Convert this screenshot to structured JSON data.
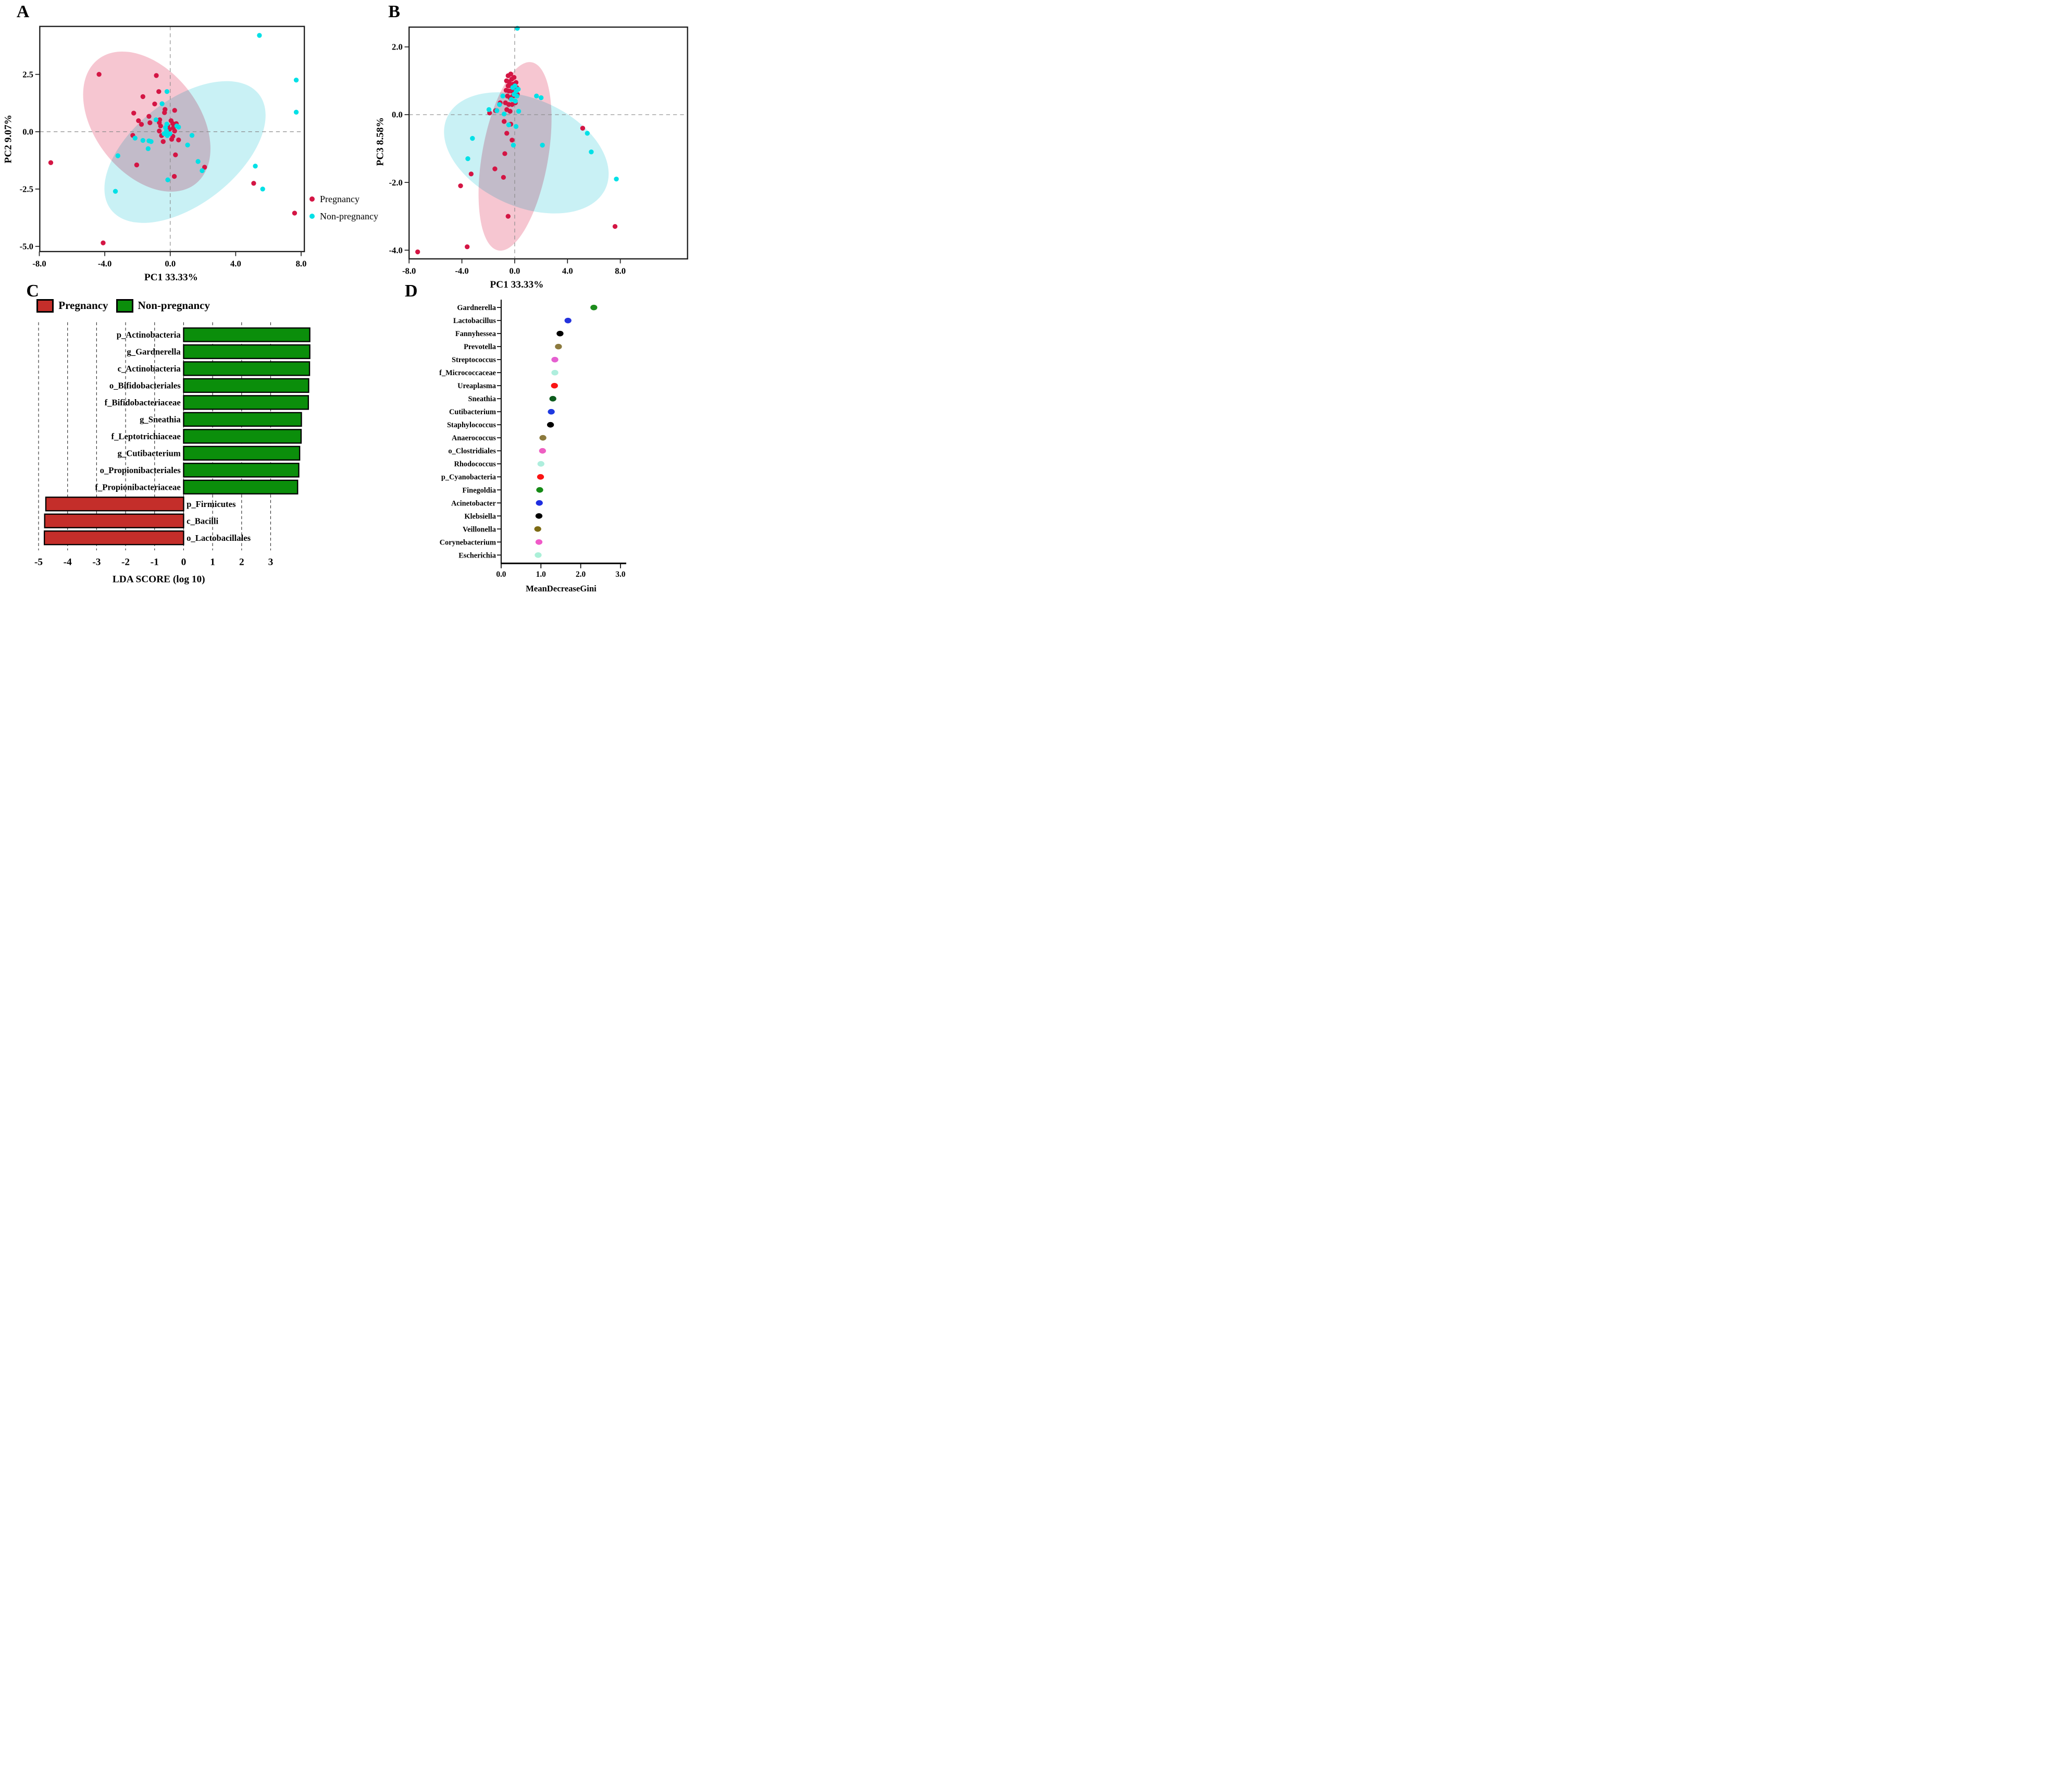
{
  "panel_letters": {
    "a": "A",
    "b": "B",
    "c": "C",
    "d": "D"
  },
  "legend_ab": {
    "items": [
      {
        "label": "Pregnancy",
        "color": "#d41544"
      },
      {
        "label": "Non-pregnancy",
        "color": "#00e0e6"
      }
    ]
  },
  "legend_c": {
    "items": [
      {
        "label": "Pregnancy",
        "color": "#c42e2a"
      },
      {
        "label": "Non-pregnancy",
        "color": "#0b8e0b"
      }
    ]
  },
  "chart_data": [
    {
      "id": "A",
      "type": "scatter",
      "xlabel": "PC1 33.33%",
      "ylabel": "PC2 9.07%",
      "xlim": [
        -8.0,
        8.2
      ],
      "ylim": [
        -5.2,
        4.6
      ],
      "grid": false,
      "xticks": {
        "labels": [
          "-8.0",
          "-4.0",
          "0.0",
          "4.0",
          "8.0"
        ],
        "values": [
          -8,
          -4,
          0,
          4,
          8
        ]
      },
      "yticks": {
        "labels": [
          "2.5",
          "0.0",
          "-2.5",
          "-5.0"
        ],
        "values": [
          2.5,
          0,
          -2.5,
          -5
        ]
      },
      "ellipses": [
        {
          "series": "Pregnancy",
          "fill": "#f6c6d1",
          "cx": 845,
          "cy": 700,
          "rx": 455,
          "ry": 300,
          "rot": 52
        },
        {
          "series": "Non-pregnancy",
          "fill": "#c9f1f5",
          "cx": 1065,
          "cy": 875,
          "rx": 540,
          "ry": 300,
          "rot": -38
        }
      ],
      "series": [
        {
          "name": "Pregnancy",
          "color": "#d41544",
          "points": [
            [
              -4.35,
              2.5
            ],
            [
              -0.85,
              2.45
            ],
            [
              -0.7,
              1.75
            ],
            [
              -1.67,
              1.53
            ],
            [
              -0.95,
              1.21
            ],
            [
              0.27,
              0.93
            ],
            [
              -0.32,
              0.97
            ],
            [
              -0.35,
              0.83
            ],
            [
              -2.23,
              0.81
            ],
            [
              -1.3,
              0.67
            ],
            [
              -1.24,
              0.39
            ],
            [
              -1.94,
              0.48
            ],
            [
              -1.76,
              0.32
            ],
            [
              -0.64,
              0.52
            ],
            [
              -0.67,
              0.4
            ],
            [
              -0.59,
              0.25
            ],
            [
              -0.67,
              0.03
            ],
            [
              0.05,
              0.48
            ],
            [
              0.16,
              0.35
            ],
            [
              0.19,
              0.17
            ],
            [
              -0.16,
              0.25
            ],
            [
              0.37,
              0.35
            ],
            [
              -0.05,
              0.1
            ],
            [
              -0.53,
              -0.17
            ],
            [
              0.16,
              -0.2
            ],
            [
              -0.43,
              -0.43
            ],
            [
              0.09,
              -0.33
            ],
            [
              0.27,
              0.03
            ],
            [
              0.51,
              -0.36
            ],
            [
              0.32,
              -1.01
            ],
            [
              -2.29,
              -0.16
            ],
            [
              -7.3,
              -1.35
            ],
            [
              -2.05,
              -1.45
            ],
            [
              2.1,
              -1.55
            ],
            [
              0.25,
              -1.95
            ],
            [
              5.1,
              -2.25
            ],
            [
              7.6,
              -3.55
            ],
            [
              -4.1,
              -4.85
            ]
          ]
        },
        {
          "name": "Non-pregnancy",
          "color": "#00e0e6",
          "points": [
            [
              5.45,
              4.2
            ],
            [
              7.7,
              2.25
            ],
            [
              7.7,
              0.85
            ],
            [
              -0.2,
              1.75
            ],
            [
              -0.5,
              1.22
            ],
            [
              -0.87,
              0.52
            ],
            [
              -0.21,
              0.33
            ],
            [
              -0.29,
              0.18
            ],
            [
              -0.23,
              0.03
            ],
            [
              -0.37,
              -0.09
            ],
            [
              -0.18,
              -0.17
            ],
            [
              -0.02,
              -0.09
            ],
            [
              0.4,
              0.25
            ],
            [
              0.51,
              0.2
            ],
            [
              1.33,
              -0.16
            ],
            [
              -1.67,
              -0.38
            ],
            [
              -1.3,
              -0.4
            ],
            [
              -1.17,
              -0.43
            ],
            [
              -2.15,
              -0.28
            ],
            [
              -1.35,
              -0.74
            ],
            [
              1.06,
              -0.58
            ],
            [
              1.7,
              -1.3
            ],
            [
              1.95,
              -1.7
            ],
            [
              -3.2,
              -1.05
            ],
            [
              -0.15,
              -2.1
            ],
            [
              -3.35,
              -2.6
            ],
            [
              5.2,
              -1.5
            ],
            [
              5.65,
              -2.5
            ]
          ]
        }
      ]
    },
    {
      "id": "B",
      "type": "scatter",
      "xlabel": "PC1 33.33%",
      "ylabel": "PC3 8.58%",
      "xlim": [
        -8.0,
        13.0
      ],
      "ylim": [
        -4.3,
        2.6
      ],
      "grid": false,
      "xticks": {
        "labels": [
          "-8.0",
          "-4.0",
          "0.0",
          "4.0",
          "8.0"
        ],
        "values": [
          -8,
          -4,
          0,
          4,
          8
        ]
      },
      "yticks": {
        "labels": [
          "2.0",
          "0.0",
          "-2.0",
          "-4.0"
        ],
        "values": [
          2,
          0,
          -2,
          -4
        ]
      },
      "ellipses": [
        {
          "series": "Non-pregnancy",
          "fill": "#c9f1f5",
          "cx": 3030,
          "cy": 880,
          "rx": 500,
          "ry": 310,
          "rot": 24
        },
        {
          "series": "Pregnancy",
          "fill": "#f6c6d1",
          "cx": 2965,
          "cy": 900,
          "rx": 190,
          "ry": 550,
          "rot": 10
        }
      ],
      "series": [
        {
          "name": "Pregnancy",
          "color": "#d41544",
          "points": [
            [
              -0.5,
              1.15
            ],
            [
              -0.3,
              1.2
            ],
            [
              -0.62,
              1.0
            ],
            [
              -0.42,
              0.97
            ],
            [
              -0.22,
              1.05
            ],
            [
              -0.05,
              1.1
            ],
            [
              -0.5,
              0.85
            ],
            [
              -0.3,
              0.85
            ],
            [
              -0.12,
              0.9
            ],
            [
              0.1,
              0.95
            ],
            [
              -0.65,
              0.72
            ],
            [
              -0.45,
              0.7
            ],
            [
              -0.25,
              0.7
            ],
            [
              0.0,
              0.75
            ],
            [
              0.15,
              0.8
            ],
            [
              -0.55,
              0.55
            ],
            [
              -0.35,
              0.5
            ],
            [
              -0.15,
              0.55
            ],
            [
              0.2,
              0.6
            ],
            [
              -0.7,
              0.35
            ],
            [
              -0.45,
              0.3
            ],
            [
              -0.2,
              0.3
            ],
            [
              0.05,
              0.35
            ],
            [
              -0.6,
              0.15
            ],
            [
              -0.35,
              0.1
            ],
            [
              -1.1,
              0.35
            ],
            [
              -1.45,
              0.12
            ],
            [
              -1.9,
              0.05
            ],
            [
              -0.8,
              -0.2
            ],
            [
              -0.3,
              -0.28
            ],
            [
              -0.6,
              -0.55
            ],
            [
              -0.2,
              -0.75
            ],
            [
              -0.75,
              -1.15
            ],
            [
              -3.3,
              -1.75
            ],
            [
              -1.5,
              -1.6
            ],
            [
              -0.85,
              -1.85
            ],
            [
              -4.1,
              -2.1
            ],
            [
              -0.5,
              -3.0
            ],
            [
              -3.6,
              -3.9
            ],
            [
              -7.35,
              -4.05
            ],
            [
              7.6,
              -3.3
            ],
            [
              5.15,
              -0.4
            ]
          ]
        },
        {
          "name": "Non-pregnancy",
          "color": "#00e0e6",
          "points": [
            [
              0.2,
              2.55
            ],
            [
              -0.15,
              0.8
            ],
            [
              0.02,
              0.85
            ],
            [
              0.12,
              0.7
            ],
            [
              0.27,
              0.75
            ],
            [
              -0.05,
              0.6
            ],
            [
              0.17,
              0.55
            ],
            [
              -0.25,
              0.45
            ],
            [
              0.05,
              0.4
            ],
            [
              -0.9,
              0.55
            ],
            [
              -1.15,
              0.3
            ],
            [
              -1.35,
              0.12
            ],
            [
              -0.8,
              0.02
            ],
            [
              0.3,
              0.1
            ],
            [
              -0.45,
              -0.3
            ],
            [
              0.1,
              -0.35
            ],
            [
              2.0,
              0.5
            ],
            [
              1.65,
              0.55
            ],
            [
              -1.95,
              0.15
            ],
            [
              -3.2,
              -0.7
            ],
            [
              -3.55,
              -1.3
            ],
            [
              2.1,
              -0.9
            ],
            [
              -0.1,
              -0.9
            ],
            [
              5.5,
              -0.55
            ],
            [
              5.8,
              -1.1
            ],
            [
              7.7,
              -1.9
            ]
          ]
        }
      ]
    },
    {
      "id": "C",
      "type": "bar",
      "xlabel": "LDA SCORE (log 10)",
      "xticks": {
        "labels": [
          "-5",
          "-4",
          "-3",
          "-2",
          "-1",
          "0",
          "1",
          "2",
          "3"
        ],
        "values": [
          -5,
          -4,
          -3,
          -2,
          -1,
          0,
          1,
          2,
          3
        ]
      },
      "xlim": [
        -5,
        4.5
      ],
      "bars": [
        {
          "label": "p_Actinobacteria",
          "value": 4.35,
          "group": "Non-pregnancy"
        },
        {
          "label": "g_Gardnerella",
          "value": 4.35,
          "group": "Non-pregnancy"
        },
        {
          "label": "c_Actinobacteria",
          "value": 4.34,
          "group": "Non-pregnancy"
        },
        {
          "label": "o_Bifidobacteriales",
          "value": 4.31,
          "group": "Non-pregnancy"
        },
        {
          "label": "f_Bifidobacteriaceae",
          "value": 4.3,
          "group": "Non-pregnancy"
        },
        {
          "label": "g_Sneathia",
          "value": 4.06,
          "group": "Non-pregnancy"
        },
        {
          "label": "f_Leptotrichiaceae",
          "value": 4.05,
          "group": "Non-pregnancy"
        },
        {
          "label": "g_Cutibacterium",
          "value": 4.0,
          "group": "Non-pregnancy"
        },
        {
          "label": "o_Propionibacteriales",
          "value": 3.97,
          "group": "Non-pregnancy"
        },
        {
          "label": "f_Propionibacteriaceae",
          "value": 3.93,
          "group": "Non-pregnancy"
        },
        {
          "label": "p_Firmicutes",
          "value": -4.75,
          "group": "Pregnancy"
        },
        {
          "label": "c_Bacilli",
          "value": -4.79,
          "group": "Pregnancy"
        },
        {
          "label": "o_Lactobacillales",
          "value": -4.8,
          "group": "Pregnancy"
        }
      ]
    },
    {
      "id": "D",
      "type": "dot",
      "xlabel": "MeanDecreaseGini",
      "xticks": {
        "labels": [
          "0.0",
          "1.0",
          "2.0",
          "3.0"
        ],
        "values": [
          0,
          1,
          2,
          3
        ]
      },
      "xlim": [
        0,
        3.3
      ],
      "rows": [
        {
          "label": "Gardnerella",
          "value": 2.33,
          "color": "#1d8c1d"
        },
        {
          "label": "Lactobacillus",
          "value": 1.68,
          "color": "#2433dd"
        },
        {
          "label": "Fannyhessea",
          "value": 1.48,
          "color": "#000000"
        },
        {
          "label": "Prevotella",
          "value": 1.44,
          "color": "#8c7a3e"
        },
        {
          "label": "Streptococcus",
          "value": 1.35,
          "color": "#e55fd0"
        },
        {
          "label": "f_Micrococcaceae",
          "value": 1.35,
          "color": "#aeeedd"
        },
        {
          "label": "Ureaplasma",
          "value": 1.34,
          "color": "#fa1414"
        },
        {
          "label": "Sneathia",
          "value": 1.3,
          "color": "#0d5c1d"
        },
        {
          "label": "Cutibacterium",
          "value": 1.26,
          "color": "#1f3ae0"
        },
        {
          "label": "Staphylococcus",
          "value": 1.24,
          "color": "#000000"
        },
        {
          "label": "Anaerococcus",
          "value": 1.05,
          "color": "#8c7a3e"
        },
        {
          "label": "o_Clostridiales",
          "value": 1.04,
          "color": "#ee5fc2"
        },
        {
          "label": "Rhodococcus",
          "value": 1.0,
          "color": "#aeeedd"
        },
        {
          "label": "p_Cyanobacteria",
          "value": 0.99,
          "color": "#fa1414"
        },
        {
          "label": "Finegoldia",
          "value": 0.97,
          "color": "#168a16"
        },
        {
          "label": "Acinetobacter",
          "value": 0.96,
          "color": "#1f2ee0"
        },
        {
          "label": "Klebsiella",
          "value": 0.95,
          "color": "#000000"
        },
        {
          "label": "Veillonella",
          "value": 0.92,
          "color": "#7d6b14"
        },
        {
          "label": "Corynebacterium",
          "value": 0.95,
          "color": "#f05ac8"
        },
        {
          "label": "Escherichia",
          "value": 0.93,
          "color": "#abf0d8"
        }
      ]
    }
  ]
}
